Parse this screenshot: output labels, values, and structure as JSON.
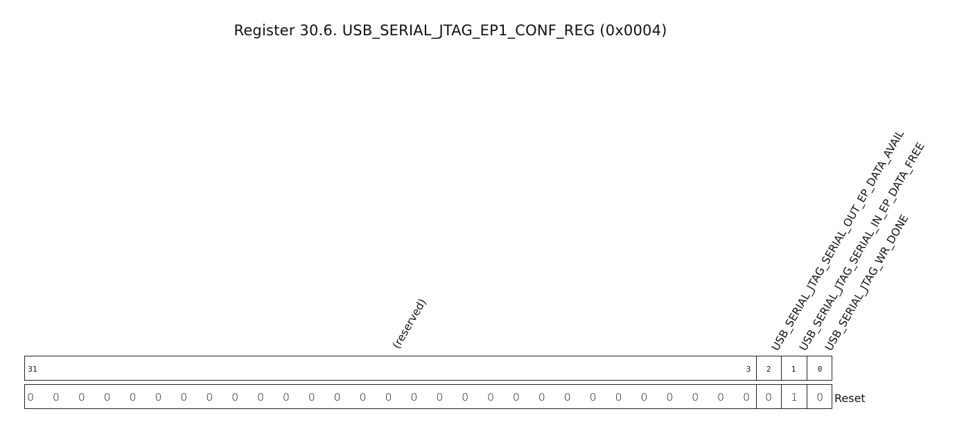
{
  "title": "Register 30.6. USB_SERIAL_JTAG_EP1_CONF_REG (0x0004)",
  "fields": [
    {
      "label": "(reserved)",
      "bits": "31:3"
    },
    {
      "label": "USB_SERIAL_JTAG_SERIAL_OUT_EP_DATA_AVAIL",
      "bits": "2"
    },
    {
      "label": "USB_SERIAL_JTAG_SERIAL_IN_EP_DATA_FREE",
      "bits": "1"
    },
    {
      "label": "USB_SERIAL_JTAG_WR_DONE",
      "bits": "0"
    }
  ],
  "bit_numbers": {
    "reserved_high": "31",
    "reserved_low": "3",
    "bit2": "2",
    "bit1": "1",
    "bit0": "0"
  },
  "reset": {
    "label": "Reset",
    "reserved_values": [
      "0",
      "0",
      "0",
      "0",
      "0",
      "0",
      "0",
      "0",
      "0",
      "0",
      "0",
      "0",
      "0",
      "0",
      "0",
      "0",
      "0",
      "0",
      "0",
      "0",
      "0",
      "0",
      "0",
      "0",
      "0",
      "0",
      "0",
      "0",
      "0"
    ],
    "bit2": "0",
    "bit1": "1",
    "bit0": "0"
  }
}
